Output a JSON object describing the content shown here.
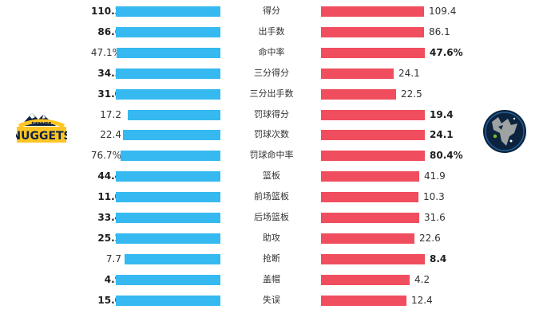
{
  "teams": {
    "left": {
      "logo_text_top": "DENVER",
      "logo_text_main": "NUGGETS",
      "bar_color": "#35b9f0"
    },
    "right": {
      "bar_color": "#f04e5e"
    }
  },
  "stats": [
    {
      "label": "得分",
      "left": "110.3",
      "right": "109.4",
      "lnum": 110.3,
      "rnum": 109.4,
      "lbold": true,
      "rbold": false
    },
    {
      "label": "出手数",
      "left": "86.6",
      "right": "86.1",
      "lnum": 86.6,
      "rnum": 86.1,
      "lbold": true,
      "rbold": false
    },
    {
      "label": "命中率",
      "left": "47.1%",
      "right": "47.6%",
      "lnum": 47.1,
      "rnum": 47.6,
      "lbold": false,
      "rbold": true
    },
    {
      "label": "三分得分",
      "left": "34.5",
      "right": "24.1",
      "lnum": 34.5,
      "rnum": 24.1,
      "lbold": true,
      "rbold": false
    },
    {
      "label": "三分出手数",
      "left": "31.0",
      "right": "22.5",
      "lnum": 31.0,
      "rnum": 22.5,
      "lbold": true,
      "rbold": false
    },
    {
      "label": "罚球得分",
      "left": "17.2",
      "right": "19.4",
      "lnum": 17.2,
      "rnum": 19.4,
      "lbold": false,
      "rbold": true
    },
    {
      "label": "罚球次数",
      "left": "22.4",
      "right": "24.1",
      "lnum": 22.4,
      "rnum": 24.1,
      "lbold": false,
      "rbold": true
    },
    {
      "label": "罚球命中率",
      "left": "76.7%",
      "right": "80.4%",
      "lnum": 76.7,
      "rnum": 80.4,
      "lbold": false,
      "rbold": true
    },
    {
      "label": "篮板",
      "left": "44.4",
      "right": "41.9",
      "lnum": 44.4,
      "rnum": 41.9,
      "lbold": true,
      "rbold": false
    },
    {
      "label": "前场篮板",
      "left": "11.0",
      "right": "10.3",
      "lnum": 11.0,
      "rnum": 10.3,
      "lbold": true,
      "rbold": false
    },
    {
      "label": "后场篮板",
      "left": "33.4",
      "right": "31.6",
      "lnum": 33.4,
      "rnum": 31.6,
      "lbold": true,
      "rbold": false
    },
    {
      "label": "助攻",
      "left": "25.2",
      "right": "22.6",
      "lnum": 25.2,
      "rnum": 22.6,
      "lbold": true,
      "rbold": false
    },
    {
      "label": "抢断",
      "left": "7.7",
      "right": "8.4",
      "lnum": 7.7,
      "rnum": 8.4,
      "lbold": false,
      "rbold": true
    },
    {
      "label": "盖帽",
      "left": "4.9",
      "right": "4.2",
      "lnum": 4.9,
      "rnum": 4.2,
      "lbold": true,
      "rbold": false
    },
    {
      "label": "失误",
      "left": "15.0",
      "right": "12.4",
      "lnum": 15.0,
      "rnum": 12.4,
      "lbold": true,
      "rbold": false
    }
  ]
}
